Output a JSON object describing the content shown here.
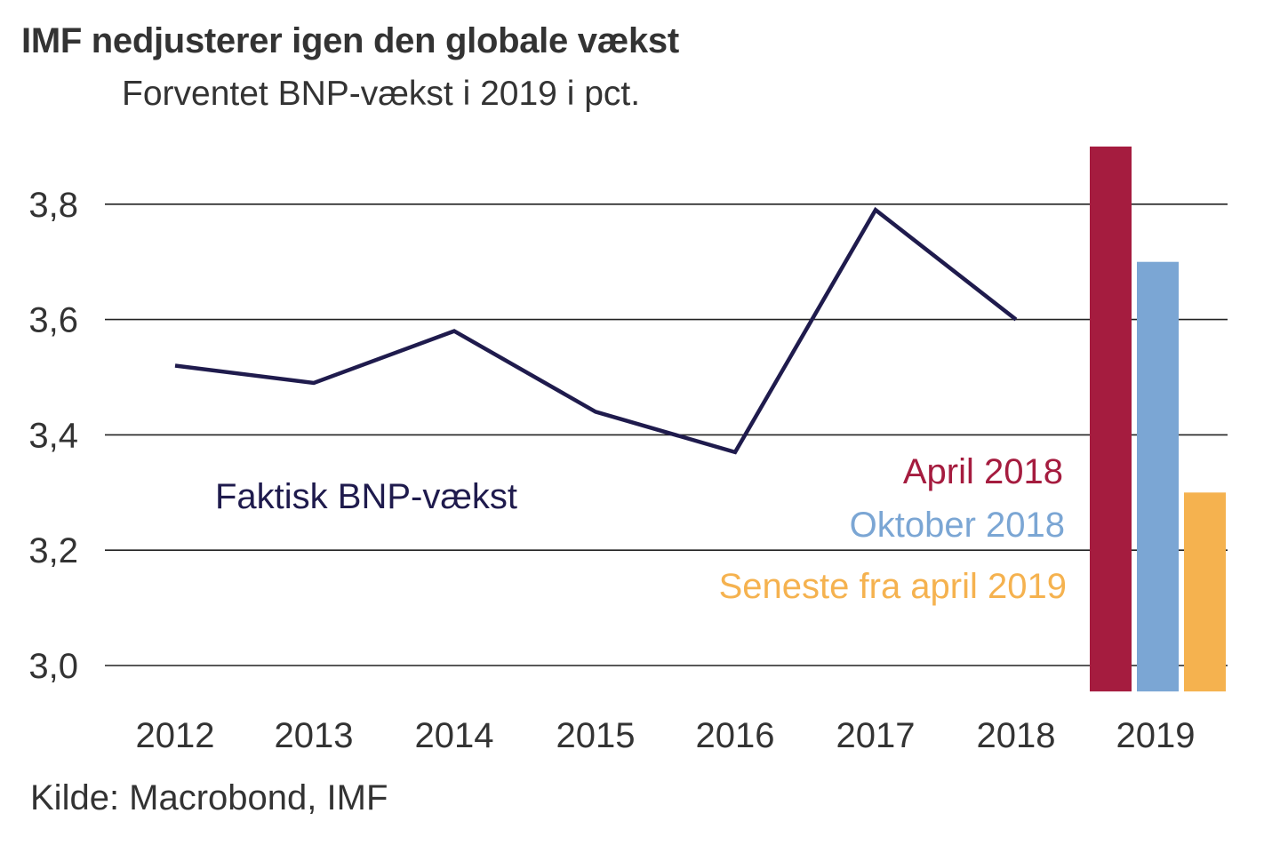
{
  "header": {
    "title": "IMF nedjusterer igen den globale vækst",
    "subtitle": "Forventet BNP-vækst i 2019 i pct."
  },
  "footer": {
    "source": "Kilde: Macrobond, IMF"
  },
  "chart_data": {
    "type": "line+bar",
    "title": "IMF nedjusterer igen den globale vækst",
    "subtitle": "Forventet BNP-vækst i 2019 i pct.",
    "xlabel": "",
    "ylabel": "",
    "ylim": [
      3.0,
      3.9
    ],
    "grid": true,
    "x_categories": [
      "2012",
      "2013",
      "2014",
      "2015",
      "2016",
      "2017",
      "2018",
      "2019"
    ],
    "y_ticks": [
      3.0,
      3.2,
      3.4,
      3.6,
      3.8
    ],
    "y_tick_labels": [
      "3,0",
      "3,2",
      "3,4",
      "3,6",
      "3,8"
    ],
    "line_series": {
      "name": "Faktisk BNP-vækst",
      "color": "#1f1b4d",
      "x": [
        "2012",
        "2013",
        "2014",
        "2015",
        "2016",
        "2017",
        "2018"
      ],
      "values": [
        3.52,
        3.49,
        3.58,
        3.44,
        3.37,
        3.79,
        3.6
      ]
    },
    "bar_series": [
      {
        "name": "April 2018",
        "category": "2019",
        "value": 3.9,
        "color": "#a51c3f"
      },
      {
        "name": "Oktober 2018",
        "category": "2019",
        "value": 3.7,
        "color": "#7ba6d4"
      },
      {
        "name": "Seneste fra april 2019",
        "category": "2019",
        "value": 3.3,
        "color": "#f5b24f"
      }
    ],
    "annotations": [
      {
        "text": "Faktisk BNP-vækst",
        "color": "#1f1b4d"
      },
      {
        "text": "April 2018",
        "color": "#a51c3f"
      },
      {
        "text": "Oktober 2018",
        "color": "#7ba6d4"
      },
      {
        "text": "Seneste fra april 2019",
        "color": "#f5b24f"
      }
    ],
    "source": "Kilde: Macrobond, IMF"
  }
}
